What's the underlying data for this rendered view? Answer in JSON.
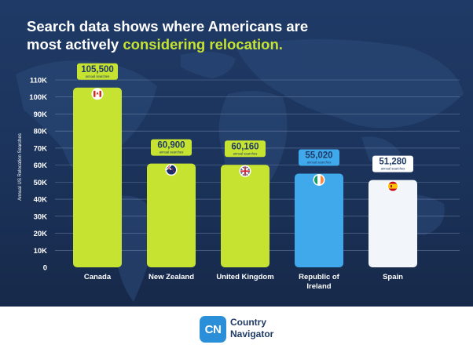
{
  "title": {
    "line1": "Search data shows where Americans are",
    "line2_prefix": "most actively ",
    "line2_highlight": "considering relocation."
  },
  "colors": {
    "accent_green": "#c5e330",
    "ireland_blue": "#3fa9ec",
    "spain_white": "#f2f6fb",
    "label_dark": "#1f3a66"
  },
  "brand": {
    "logo_text": "CN",
    "name_line1": "Country",
    "name_line2": "Navigator"
  },
  "chart_data": {
    "type": "bar",
    "title": "Search data shows where Americans are most actively considering relocation.",
    "ylabel": "Annual US Relocation Searches",
    "xlabel": "",
    "ylim": [
      0,
      110000
    ],
    "yticks": [
      0,
      10000,
      20000,
      30000,
      40000,
      50000,
      60000,
      70000,
      80000,
      90000,
      100000,
      110000
    ],
    "ytick_labels": [
      "0",
      "10K",
      "20K",
      "30K",
      "40K",
      "50K",
      "60K",
      "70K",
      "80K",
      "90K",
      "100K",
      "110K"
    ],
    "grid": true,
    "categories": [
      "Canada",
      "New Zealand",
      "United Kingdom",
      "Republic of Ireland",
      "Spain"
    ],
    "category_lines": [
      [
        "Canada"
      ],
      [
        "New Zealand"
      ],
      [
        "United Kingdom"
      ],
      [
        "Republic of",
        "Ireland"
      ],
      [
        "Spain"
      ]
    ],
    "values": [
      105500,
      60900,
      60160,
      55020,
      51280
    ],
    "value_labels": [
      "105,500",
      "60,900",
      "60,160",
      "55,020",
      "51,280"
    ],
    "sublabel": "annual searches",
    "bar_colors": [
      "#c5e330",
      "#c5e330",
      "#c5e330",
      "#3fa9ec",
      "#f2f6fb"
    ],
    "flags": [
      "canada-flag",
      "new-zealand-flag",
      "uk-flag",
      "ireland-flag",
      "spain-flag"
    ]
  }
}
